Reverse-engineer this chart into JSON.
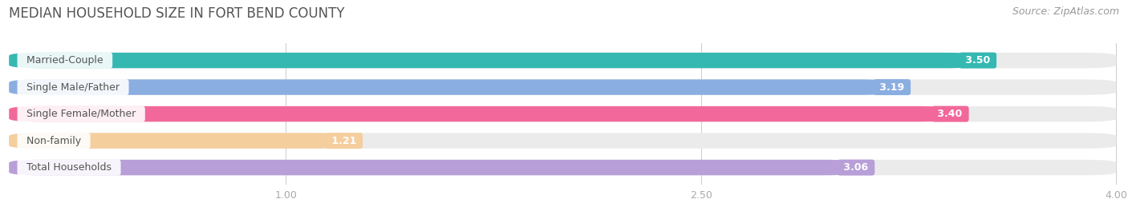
{
  "title": "MEDIAN HOUSEHOLD SIZE IN FORT BEND COUNTY",
  "source": "Source: ZipAtlas.com",
  "categories": [
    "Married-Couple",
    "Single Male/Father",
    "Single Female/Mother",
    "Non-family",
    "Total Households"
  ],
  "values": [
    3.5,
    3.19,
    3.4,
    1.21,
    3.06
  ],
  "bar_colors": [
    "#35b8b2",
    "#8aaee0",
    "#f2689a",
    "#f5ce9e",
    "#b89fd8"
  ],
  "bg_bar_color": "#ebebeb",
  "fig_bg_color": "#ffffff",
  "title_color": "#555555",
  "source_color": "#999999",
  "tick_label_color": "#aaaaaa",
  "label_text_color": "#555555",
  "value_text_color": "#ffffff",
  "xlim_min": 0.0,
  "xlim_max": 4.0,
  "xticks": [
    1.0,
    2.5,
    4.0
  ],
  "bar_height": 0.58,
  "title_fontsize": 12,
  "source_fontsize": 9,
  "label_fontsize": 9,
  "value_fontsize": 9,
  "tick_fontsize": 9
}
